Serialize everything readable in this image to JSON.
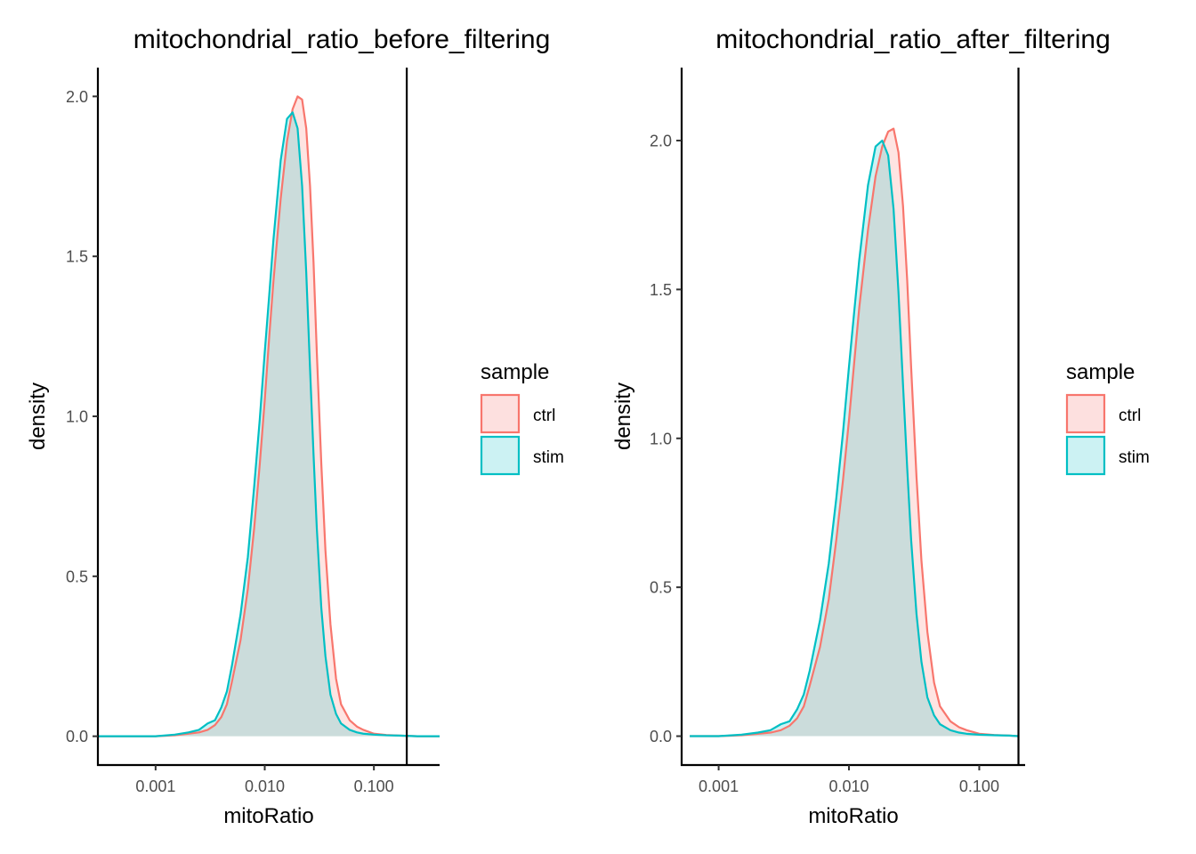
{
  "chart_data": [
    {
      "type": "area",
      "title": "mitochondrial_ratio_before_filtering",
      "xlabel": "mitoRatio",
      "ylabel": "density",
      "x_scale": "log10",
      "xlim": [
        0.000296,
        0.4
      ],
      "ylim": [
        -0.09,
        2.09
      ],
      "x_ticks": [
        {
          "value": 0.001,
          "label": "0.001"
        },
        {
          "value": 0.01,
          "label": "0.010"
        },
        {
          "value": 0.1,
          "label": "0.100"
        }
      ],
      "y_ticks": [
        {
          "value": 0.0,
          "label": "0.0"
        },
        {
          "value": 0.5,
          "label": "0.5"
        },
        {
          "value": 1.0,
          "label": "1.0"
        },
        {
          "value": 1.5,
          "label": "1.5"
        },
        {
          "value": 2.0,
          "label": "2.0"
        }
      ],
      "vline": 0.2,
      "grid": false,
      "legend": {
        "title": "sample",
        "placement": "right"
      },
      "series": [
        {
          "name": "ctrl",
          "color": "#F8766D",
          "fill": "#FDE0DF",
          "x": [
            0.0003,
            0.0006,
            0.001,
            0.0015,
            0.002,
            0.0025,
            0.003,
            0.0035,
            0.004,
            0.0045,
            0.005,
            0.006,
            0.007,
            0.008,
            0.009,
            0.01,
            0.011,
            0.012,
            0.014,
            0.016,
            0.018,
            0.02,
            0.022,
            0.024,
            0.026,
            0.028,
            0.03,
            0.033,
            0.036,
            0.04,
            0.045,
            0.05,
            0.06,
            0.07,
            0.08,
            0.1,
            0.13,
            0.17,
            0.25,
            0.4
          ],
          "y": [
            0.0,
            0.0,
            0.0,
            0.003,
            0.008,
            0.012,
            0.02,
            0.035,
            0.06,
            0.1,
            0.17,
            0.3,
            0.46,
            0.65,
            0.85,
            1.05,
            1.25,
            1.42,
            1.68,
            1.86,
            1.96,
            2.0,
            1.99,
            1.9,
            1.72,
            1.48,
            1.2,
            0.85,
            0.58,
            0.35,
            0.18,
            0.1,
            0.05,
            0.03,
            0.02,
            0.008,
            0.004,
            0.002,
            0.0,
            0.0
          ]
        },
        {
          "name": "stim",
          "color": "#00BFC4",
          "fill": "#CCF2F3",
          "x": [
            0.0003,
            0.0006,
            0.001,
            0.0015,
            0.002,
            0.0025,
            0.003,
            0.0035,
            0.004,
            0.0045,
            0.005,
            0.006,
            0.007,
            0.008,
            0.009,
            0.01,
            0.011,
            0.012,
            0.014,
            0.016,
            0.018,
            0.02,
            0.022,
            0.024,
            0.026,
            0.028,
            0.03,
            0.033,
            0.036,
            0.04,
            0.045,
            0.05,
            0.06,
            0.07,
            0.08,
            0.1,
            0.13,
            0.17,
            0.25,
            0.4
          ],
          "y": [
            0.0,
            0.0,
            0.0,
            0.005,
            0.012,
            0.02,
            0.04,
            0.05,
            0.09,
            0.14,
            0.22,
            0.38,
            0.56,
            0.78,
            0.99,
            1.2,
            1.38,
            1.55,
            1.8,
            1.93,
            1.95,
            1.9,
            1.72,
            1.45,
            1.15,
            0.88,
            0.65,
            0.4,
            0.25,
            0.13,
            0.07,
            0.04,
            0.02,
            0.012,
            0.008,
            0.005,
            0.003,
            0.002,
            0.0,
            0.0
          ]
        }
      ]
    },
    {
      "type": "area",
      "title": "mitochondrial_ratio_after_filtering",
      "xlabel": "mitoRatio",
      "ylabel": "density",
      "x_scale": "log10",
      "xlim": [
        0.00052,
        0.225
      ],
      "ylim": [
        -0.097,
        2.245
      ],
      "x_ticks": [
        {
          "value": 0.001,
          "label": "0.001"
        },
        {
          "value": 0.01,
          "label": "0.010"
        },
        {
          "value": 0.1,
          "label": "0.100"
        }
      ],
      "y_ticks": [
        {
          "value": 0.0,
          "label": "0.0"
        },
        {
          "value": 0.5,
          "label": "0.5"
        },
        {
          "value": 1.0,
          "label": "1.0"
        },
        {
          "value": 1.5,
          "label": "1.5"
        },
        {
          "value": 2.0,
          "label": "2.0"
        }
      ],
      "vline": 0.2,
      "grid": false,
      "legend": {
        "title": "sample",
        "placement": "right"
      },
      "series": [
        {
          "name": "ctrl",
          "color": "#F8766D",
          "fill": "#FDE0DF",
          "x": [
            0.0006,
            0.001,
            0.0015,
            0.002,
            0.0025,
            0.003,
            0.0035,
            0.004,
            0.0045,
            0.005,
            0.006,
            0.007,
            0.008,
            0.009,
            0.01,
            0.011,
            0.012,
            0.014,
            0.016,
            0.018,
            0.02,
            0.022,
            0.024,
            0.026,
            0.028,
            0.03,
            0.033,
            0.036,
            0.04,
            0.045,
            0.05,
            0.06,
            0.07,
            0.08,
            0.1,
            0.13,
            0.17,
            0.2
          ],
          "y": [
            0.0,
            0.0,
            0.003,
            0.008,
            0.012,
            0.02,
            0.035,
            0.06,
            0.1,
            0.17,
            0.3,
            0.46,
            0.66,
            0.86,
            1.06,
            1.26,
            1.44,
            1.7,
            1.88,
            1.98,
            2.03,
            2.04,
            1.96,
            1.78,
            1.53,
            1.24,
            0.87,
            0.59,
            0.35,
            0.18,
            0.1,
            0.05,
            0.03,
            0.02,
            0.008,
            0.004,
            0.002,
            0.0
          ]
        },
        {
          "name": "stim",
          "color": "#00BFC4",
          "fill": "#CCF2F3",
          "x": [
            0.0006,
            0.001,
            0.0015,
            0.002,
            0.0025,
            0.003,
            0.0035,
            0.004,
            0.0045,
            0.005,
            0.006,
            0.007,
            0.008,
            0.009,
            0.01,
            0.011,
            0.012,
            0.014,
            0.016,
            0.018,
            0.02,
            0.022,
            0.024,
            0.026,
            0.028,
            0.03,
            0.033,
            0.036,
            0.04,
            0.045,
            0.05,
            0.06,
            0.07,
            0.08,
            0.1,
            0.13,
            0.17,
            0.2
          ],
          "y": [
            0.0,
            0.0,
            0.005,
            0.012,
            0.02,
            0.04,
            0.05,
            0.09,
            0.14,
            0.22,
            0.39,
            0.58,
            0.8,
            1.02,
            1.24,
            1.43,
            1.6,
            1.85,
            1.98,
            2.0,
            1.95,
            1.77,
            1.49,
            1.18,
            0.9,
            0.66,
            0.41,
            0.25,
            0.13,
            0.07,
            0.04,
            0.02,
            0.012,
            0.008,
            0.005,
            0.003,
            0.002,
            0.0
          ]
        }
      ]
    }
  ]
}
